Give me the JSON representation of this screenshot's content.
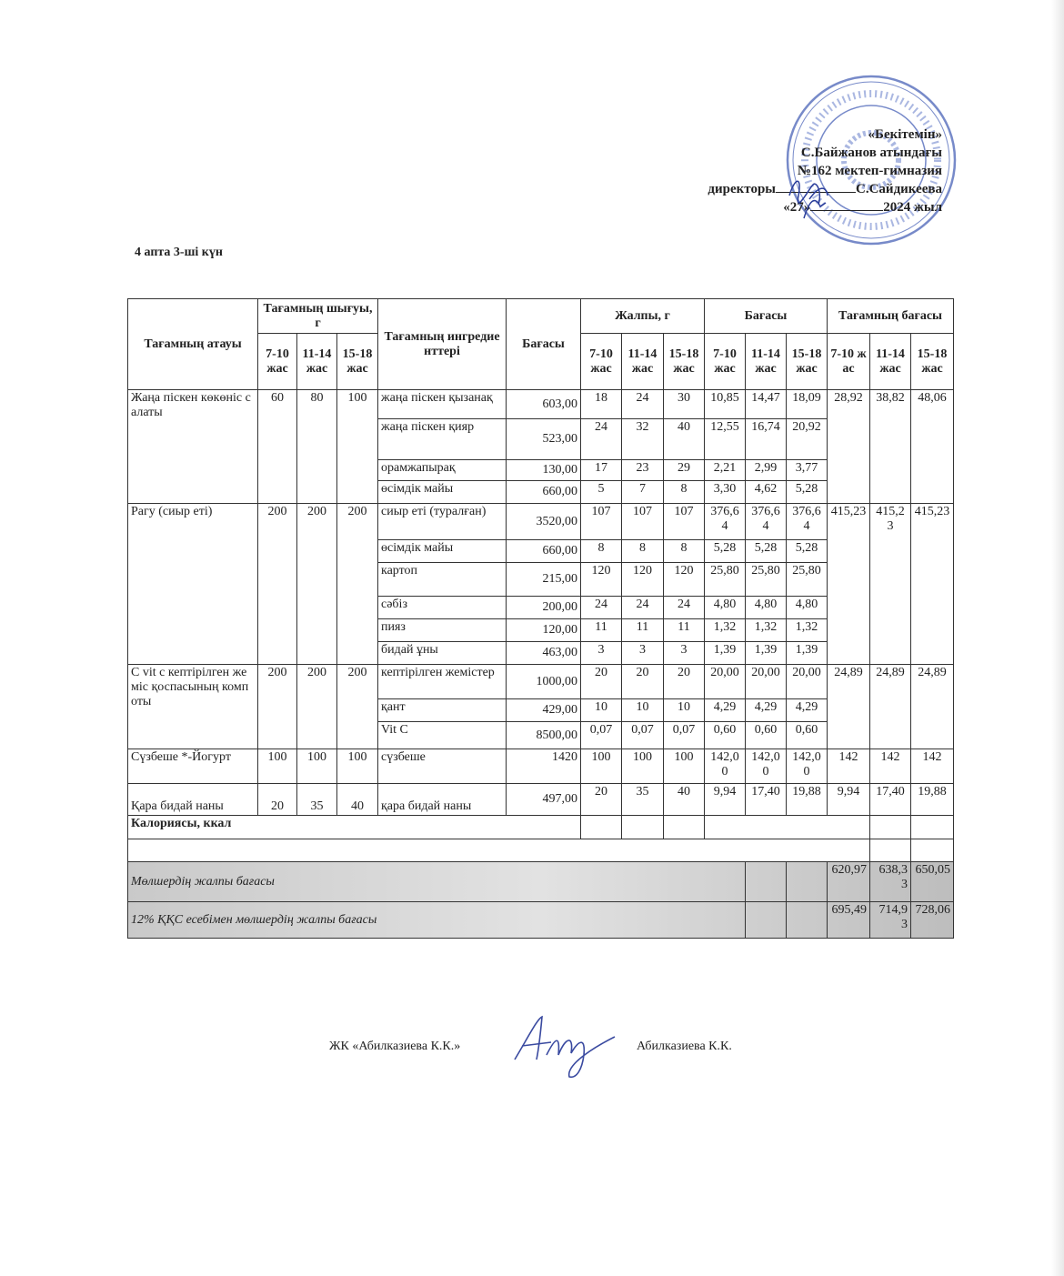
{
  "approval": {
    "title": "«Бекітемін»",
    "line1": "С.Байжанов атындағы",
    "line2": "№162 мектеп-гимназия",
    "director_label": "директоры",
    "director_name": "С.Сайдикеева",
    "date_day": "«27»",
    "date_year": "2024 жыл"
  },
  "week_day": "4 апта 3-ші күн",
  "stamp_color": "#4a63b8",
  "table": {
    "headers": {
      "name": "Тағамның атауы",
      "output": "Тағамның шығуы, г",
      "ingredients": "Тағамның ингредиенттері",
      "price": "Бағасы",
      "gross": "Жалпы, г",
      "cost": "Бағасы",
      "dish_cost": "Тағамның бағасы",
      "ages": [
        "7-10 жас",
        "11-14 жас",
        "15-18 жас"
      ]
    },
    "dishes": [
      {
        "name": "Жаңа піскен көкөніс салаты",
        "output": [
          "60",
          "80",
          "100"
        ],
        "dish_cost": [
          "28,92",
          "38,82",
          "48,06"
        ],
        "ingredients": [
          {
            "name": "жаңа піскен қызанақ",
            "price": "603,00",
            "gross": [
              "18",
              "24",
              "30"
            ],
            "cost": [
              "10,85",
              "14,47",
              "18,09"
            ]
          },
          {
            "name": "жаңа піскен қияр",
            "price": "523,00",
            "gross": [
              "24",
              "32",
              "40"
            ],
            "cost": [
              "12,55",
              "16,74",
              "20,92"
            ]
          },
          {
            "name": "орамжапырақ",
            "price": "130,00",
            "gross": [
              "17",
              "23",
              "29"
            ],
            "cost": [
              "2,21",
              "2,99",
              "3,77"
            ]
          },
          {
            "name": "өсімдік майы",
            "price": "660,00",
            "gross": [
              "5",
              "7",
              "8"
            ],
            "cost": [
              "3,30",
              "4,62",
              "5,28"
            ]
          }
        ]
      },
      {
        "name": "Рагу (сиыр еті)",
        "output": [
          "200",
          "200",
          "200"
        ],
        "dish_cost": [
          "415,23",
          "415,23",
          "415,23"
        ],
        "ingredients": [
          {
            "name": "сиыр еті (туралған)",
            "price": "3520,00",
            "gross": [
              "107",
              "107",
              "107"
            ],
            "cost": [
              "376,64",
              "376,64",
              "376,64"
            ]
          },
          {
            "name": "өсімдік майы",
            "price": "660,00",
            "gross": [
              "8",
              "8",
              "8"
            ],
            "cost": [
              "5,28",
              "5,28",
              "5,28"
            ]
          },
          {
            "name": "картоп",
            "price": "215,00",
            "gross": [
              "120",
              "120",
              "120"
            ],
            "cost": [
              "25,80",
              "25,80",
              "25,80"
            ]
          },
          {
            "name": "сәбіз",
            "price": "200,00",
            "gross": [
              "24",
              "24",
              "24"
            ],
            "cost": [
              "4,80",
              "4,80",
              "4,80"
            ]
          },
          {
            "name": "пияз",
            "price": "120,00",
            "gross": [
              "11",
              "11",
              "11"
            ],
            "cost": [
              "1,32",
              "1,32",
              "1,32"
            ]
          },
          {
            "name": "бидай ұны",
            "price": "463,00",
            "gross": [
              "3",
              "3",
              "3"
            ],
            "cost": [
              "1,39",
              "1,39",
              "1,39"
            ]
          }
        ]
      },
      {
        "name": "С vit с кептірілген жеміс қоспасының компоты",
        "output": [
          "200",
          "200",
          "200"
        ],
        "dish_cost": [
          "24,89",
          "24,89",
          "24,89"
        ],
        "ingredients": [
          {
            "name": "кептірілген жемістер",
            "price": "1000,00",
            "gross": [
              "20",
              "20",
              "20"
            ],
            "cost": [
              "20,00",
              "20,00",
              "20,00"
            ]
          },
          {
            "name": "қант",
            "price": "429,00",
            "gross": [
              "10",
              "10",
              "10"
            ],
            "cost": [
              "4,29",
              "4,29",
              "4,29"
            ]
          },
          {
            "name": "Vit C",
            "price": "8500,00",
            "gross": [
              "0,07",
              "0,07",
              "0,07"
            ],
            "cost": [
              "0,60",
              "0,60",
              "0,60"
            ]
          }
        ]
      },
      {
        "name": "Сүзбеше *-Йогурт",
        "output": [
          "100",
          "100",
          "100"
        ],
        "dish_cost": [
          "142",
          "142",
          "142"
        ],
        "ingredients": [
          {
            "name": "сүзбеше",
            "price": "1420",
            "gross": [
              "100",
              "100",
              "100"
            ],
            "cost": [
              "142,00",
              "142,00",
              "142,00"
            ]
          }
        ]
      },
      {
        "name": "Қара бидай наны",
        "output": [
          "20",
          "35",
          "40"
        ],
        "dish_cost": [
          "9,94",
          "17,40",
          "19,88"
        ],
        "ingredients": [
          {
            "name": "қара бидай наны",
            "price": "497,00",
            "gross": [
              "20",
              "35",
              "40"
            ],
            "cost": [
              "9,94",
              "17,40",
              "19,88"
            ]
          }
        ]
      }
    ],
    "calories_label": "Калориясы, ккал",
    "total_label": "Мөлшердің жалпы бағасы",
    "total": [
      "620,97",
      "638,33",
      "650,05"
    ],
    "vat_label": "12%  ҚҚС есебімен мөлшердің жалпы бағасы",
    "vat_total": [
      "695,49",
      "714,93",
      "728,06"
    ]
  },
  "footer": {
    "company": "ЖК «Абилказиева К.К.»",
    "name": "Абилказиева К.К."
  }
}
